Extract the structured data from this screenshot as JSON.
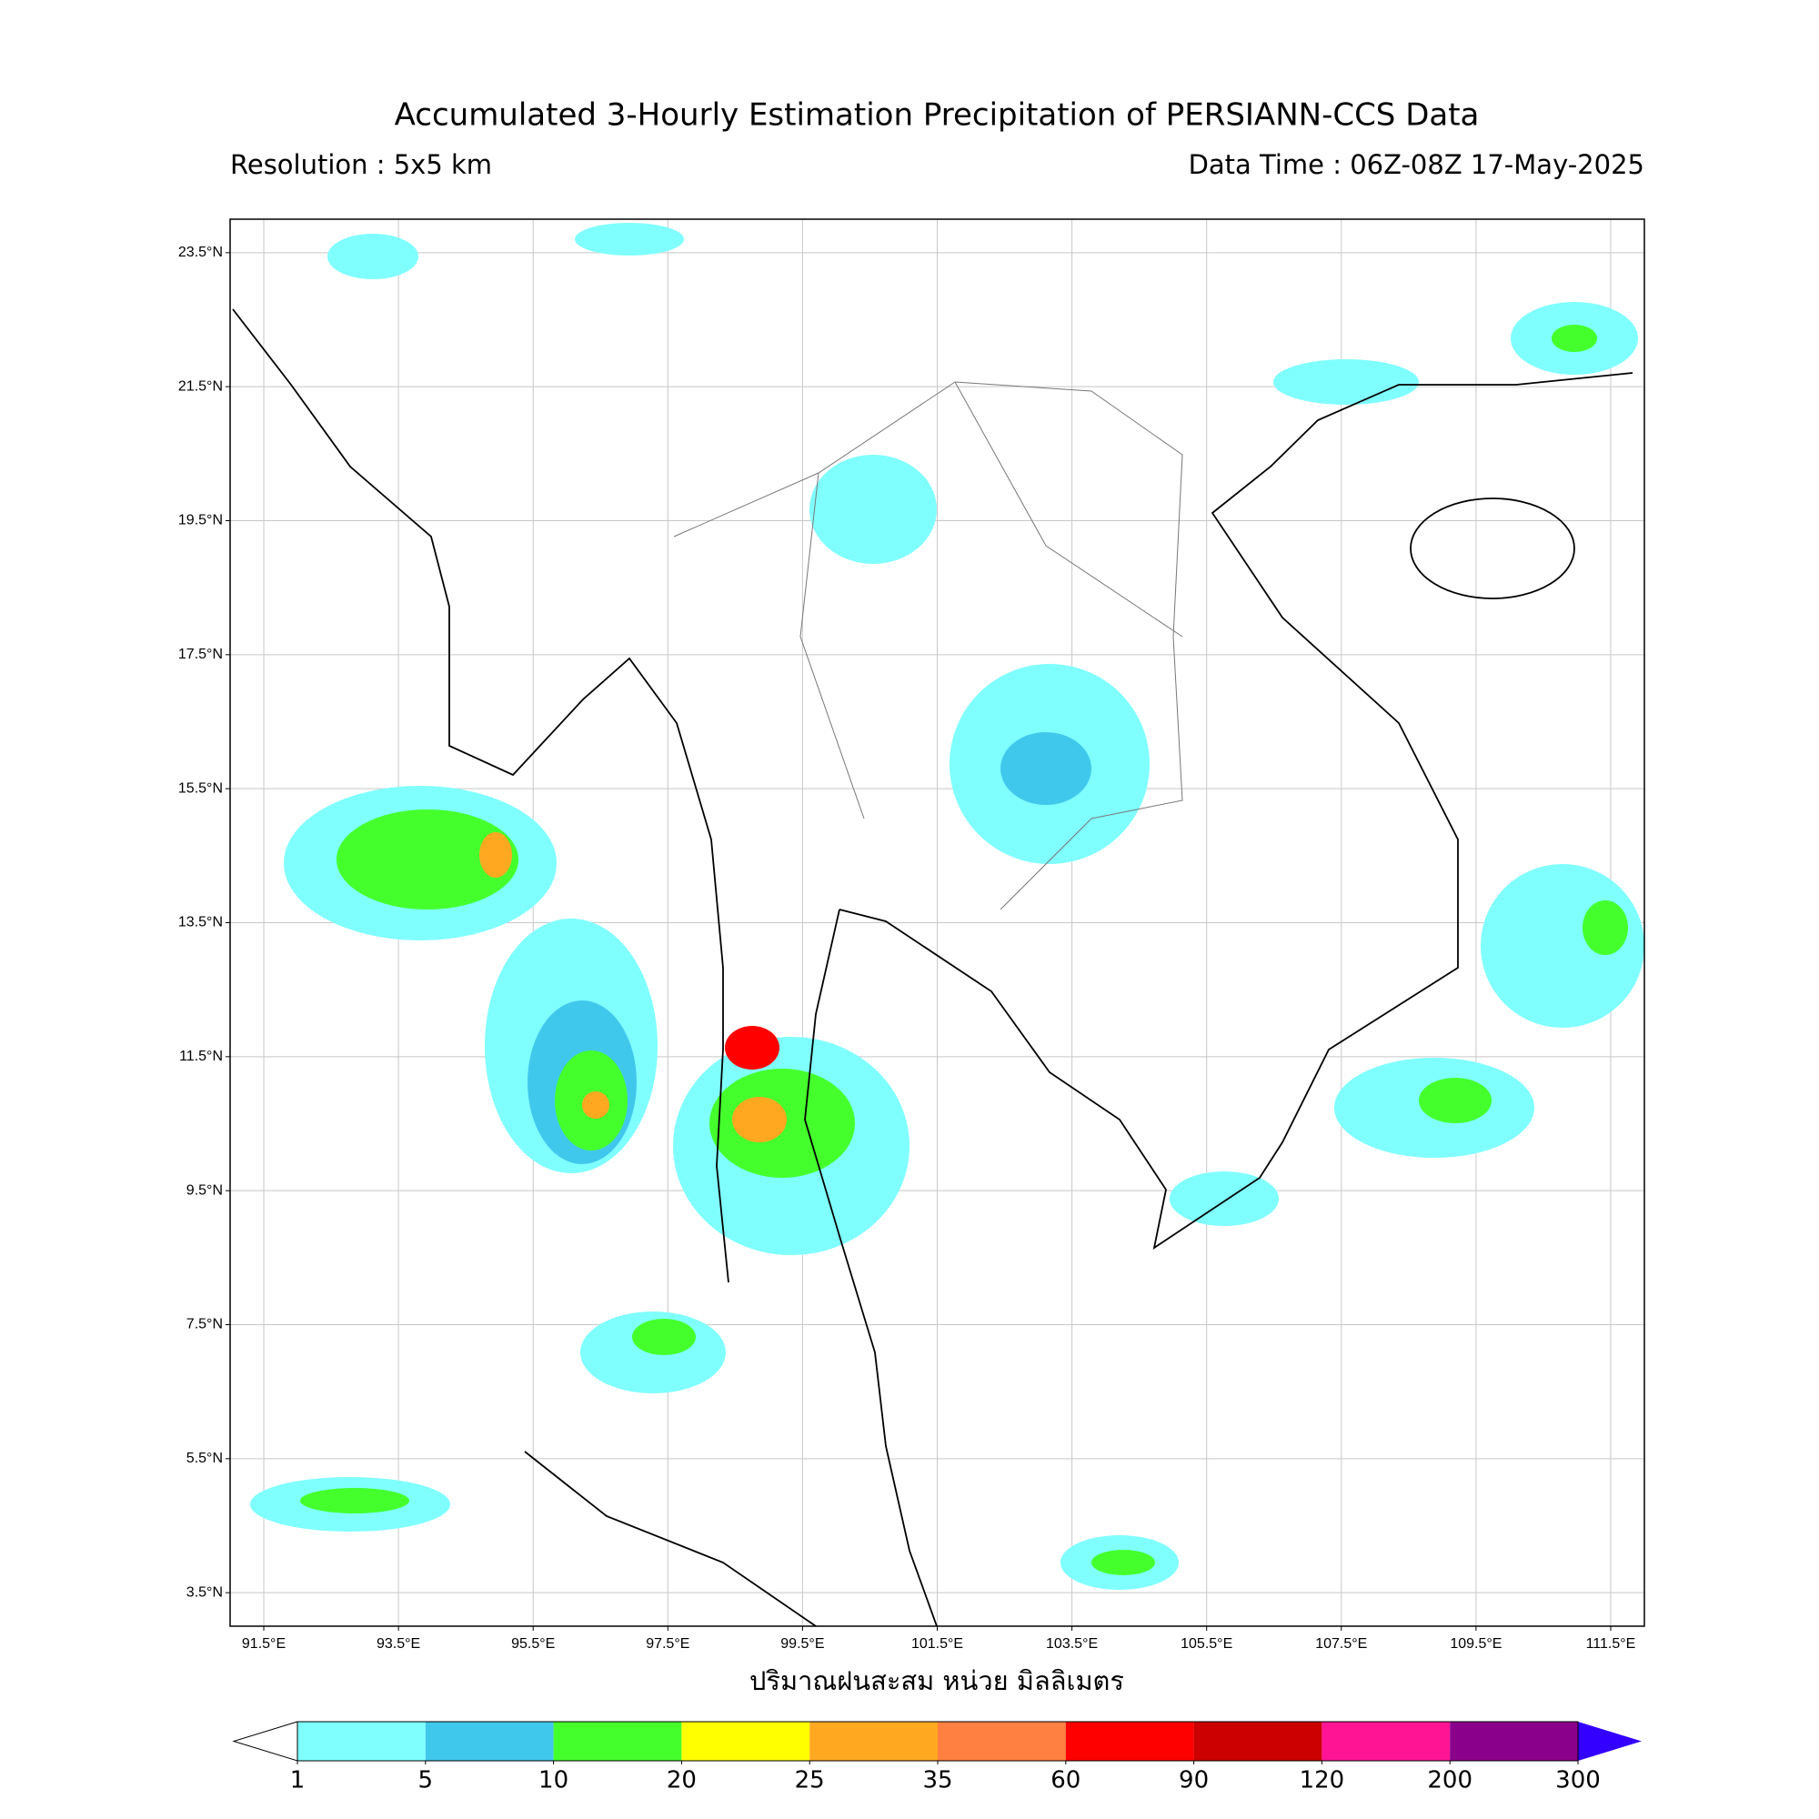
{
  "title": "Accumulated 3-Hourly Estimation Precipitation of PERSIANN-CCS Data",
  "resolution": "Resolution : 5x5 km",
  "data_time": "Data Time : 06Z-08Z 17-May-2025",
  "map": {
    "lon_range": [
      91,
      112
    ],
    "lat_range": [
      3,
      24
    ],
    "lat_ticks": [
      {
        "value": 23.5,
        "label": "23.5°N"
      },
      {
        "value": 21.5,
        "label": "21.5°N"
      },
      {
        "value": 19.5,
        "label": "19.5°N"
      },
      {
        "value": 17.5,
        "label": "17.5°N"
      },
      {
        "value": 15.5,
        "label": "15.5°N"
      },
      {
        "value": 13.5,
        "label": "13.5°N"
      },
      {
        "value": 11.5,
        "label": "11.5°N"
      },
      {
        "value": 9.5,
        "label": "9.5°N"
      },
      {
        "value": 7.5,
        "label": "7.5°N"
      },
      {
        "value": 5.5,
        "label": "5.5°N"
      },
      {
        "value": 3.5,
        "label": "3.5°N"
      }
    ],
    "lon_ticks": [
      {
        "value": 91.5,
        "label": "91.5°E"
      },
      {
        "value": 93.5,
        "label": "93.5°E"
      },
      {
        "value": 95.5,
        "label": "95.5°E"
      },
      {
        "value": 97.5,
        "label": "97.5°E"
      },
      {
        "value": 99.5,
        "label": "99.5°E"
      },
      {
        "value": 101.5,
        "label": "101.5°E"
      },
      {
        "value": 103.5,
        "label": "103.5°E"
      },
      {
        "value": 105.5,
        "label": "105.5°E"
      },
      {
        "value": 107.5,
        "label": "107.5°E"
      },
      {
        "value": 109.5,
        "label": "109.5°E"
      },
      {
        "value": 111.5,
        "label": "111.5°E"
      }
    ]
  },
  "colorbar": {
    "label": "ปริมาณฝนสะสม หน่วย มิลลิเมตร",
    "levels": [
      1,
      5,
      10,
      20,
      25,
      35,
      60,
      90,
      120,
      200,
      300
    ],
    "colors": [
      "#80ffff",
      "#40c8ec",
      "#44ff2c",
      "#ffff00",
      "#ffa820",
      "#ff8040",
      "#ff0000",
      "#cc0000",
      "#ff1493",
      "#8b008b"
    ],
    "under_color": "#ffffff",
    "over_color": "#3300ff"
  }
}
